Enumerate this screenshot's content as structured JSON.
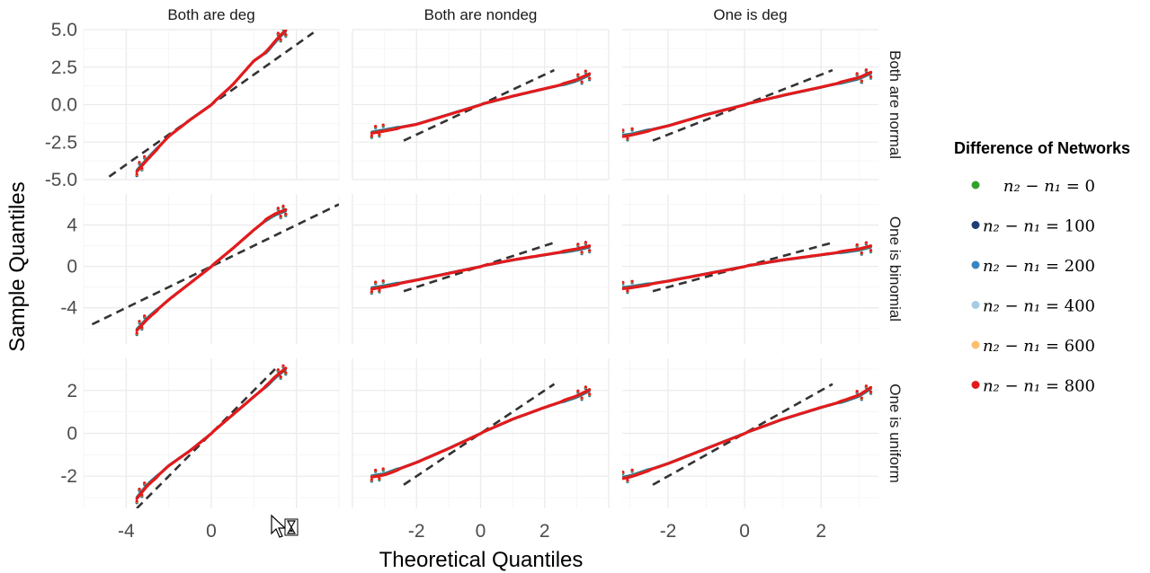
{
  "chart_data": {
    "type": "scatter",
    "subtype": "qq-plot-facet-grid",
    "xlabel": "Theoretical Quantiles",
    "ylabel": "Sample Quantiles",
    "col_strips": [
      "Both are deg",
      "Both are nondeg",
      "One is deg"
    ],
    "row_strips": [
      "Both are normal",
      "One is binomial",
      "One is uniform"
    ],
    "col_xlim": [
      [
        -6.0,
        6.0
      ],
      [
        -4.0,
        4.0
      ],
      [
        -3.2,
        3.5
      ]
    ],
    "col_xticks": [
      [
        -4,
        0
      ],
      [
        -2,
        0,
        2
      ],
      [
        -2,
        0,
        2
      ]
    ],
    "col_xtick_labels": [
      [
        "-4",
        "0"
      ],
      [
        "-2",
        "0",
        "2"
      ],
      [
        "-2",
        "0",
        "2"
      ]
    ],
    "row_ylim": [
      [
        -5.0,
        5.0
      ],
      [
        -7.5,
        7.0
      ],
      [
        -3.5,
        3.5
      ]
    ],
    "row_yticks": [
      [
        -5.0,
        -2.5,
        0.0,
        2.5,
        5.0
      ],
      [
        -4,
        0,
        4
      ],
      [
        -2,
        0,
        2
      ]
    ],
    "row_ytick_labels": [
      [
        "-5.0",
        "-2.5",
        "0.0",
        "2.5",
        "5.0"
      ],
      [
        "-4",
        "0",
        "4"
      ],
      [
        "-2",
        "0",
        "2"
      ]
    ],
    "grid": true,
    "legend": {
      "title": "Difference of Networks",
      "placement": "right",
      "entries": [
        {
          "lhs": "n₂ − n₁ = ",
          "value": "0",
          "color": "#33a02c"
        },
        {
          "lhs": "n₂ − n₁ = ",
          "value": "100",
          "color": "#1f3d73"
        },
        {
          "lhs": "n₂ − n₁ = ",
          "value": "200",
          "color": "#3a84bf"
        },
        {
          "lhs": "n₂ − n₁ = ",
          "value": "400",
          "color": "#a6cce3"
        },
        {
          "lhs": "n₂ − n₁ = ",
          "value": "600",
          "color": "#fdbf6f"
        },
        {
          "lhs": "n₂ − n₁ = ",
          "value": "800",
          "color": "#e31a1c"
        }
      ]
    },
    "reference_line": {
      "style": "dashed",
      "color": "#333333",
      "slope": 1,
      "intercept": 0
    },
    "panels": [
      {
        "row": 0,
        "col": 0,
        "qlim": [
          -3.5,
          3.5
        ],
        "series_points": [
          [
            -3.5,
            -4.4
          ],
          [
            -3.0,
            -3.6
          ],
          [
            -2.0,
            -2.1
          ],
          [
            -1.0,
            -1.0
          ],
          [
            0,
            0
          ],
          [
            1.0,
            1.3
          ],
          [
            2.0,
            2.9
          ],
          [
            2.6,
            3.5
          ],
          [
            3.2,
            4.5
          ],
          [
            3.5,
            4.9
          ]
        ]
      },
      {
        "row": 0,
        "col": 1,
        "qlim": [
          -3.4,
          3.4
        ],
        "series_points": [
          [
            -3.4,
            -1.85
          ],
          [
            -3.0,
            -1.7
          ],
          [
            -2.0,
            -1.3
          ],
          [
            -1.0,
            -0.65
          ],
          [
            0,
            0
          ],
          [
            1.0,
            0.55
          ],
          [
            2.0,
            1.05
          ],
          [
            2.6,
            1.35
          ],
          [
            3.0,
            1.6
          ],
          [
            3.4,
            2.0
          ]
        ]
      },
      {
        "row": 0,
        "col": 2,
        "qlim": [
          -3.3,
          3.3
        ],
        "series_points": [
          [
            -3.3,
            -2.1
          ],
          [
            -3.0,
            -2.0
          ],
          [
            -2.0,
            -1.4
          ],
          [
            -1.0,
            -0.65
          ],
          [
            0,
            0
          ],
          [
            1.0,
            0.6
          ],
          [
            2.0,
            1.15
          ],
          [
            2.6,
            1.5
          ],
          [
            3.0,
            1.75
          ],
          [
            3.3,
            2.1
          ]
        ]
      },
      {
        "row": 1,
        "col": 0,
        "qlim": [
          -3.5,
          3.5
        ],
        "series_points": [
          [
            -3.5,
            -6.1
          ],
          [
            -3.0,
            -5.0
          ],
          [
            -2.0,
            -3.2
          ],
          [
            -1.0,
            -1.6
          ],
          [
            0,
            0
          ],
          [
            1.0,
            1.7
          ],
          [
            2.0,
            3.5
          ],
          [
            2.6,
            4.5
          ],
          [
            3.0,
            5.0
          ],
          [
            3.5,
            5.4
          ]
        ]
      },
      {
        "row": 1,
        "col": 1,
        "qlim": [
          -3.4,
          3.4
        ],
        "series_points": [
          [
            -3.4,
            -2.1
          ],
          [
            -3.0,
            -1.9
          ],
          [
            -2.0,
            -1.3
          ],
          [
            -1.0,
            -0.65
          ],
          [
            0,
            0
          ],
          [
            1.0,
            0.6
          ],
          [
            2.0,
            1.1
          ],
          [
            2.6,
            1.4
          ],
          [
            3.0,
            1.6
          ],
          [
            3.4,
            1.9
          ]
        ]
      },
      {
        "row": 1,
        "col": 2,
        "qlim": [
          -3.3,
          3.3
        ],
        "series_points": [
          [
            -3.3,
            -2.1
          ],
          [
            -3.0,
            -2.0
          ],
          [
            -2.0,
            -1.4
          ],
          [
            -1.0,
            -0.7
          ],
          [
            0,
            0
          ],
          [
            1.0,
            0.6
          ],
          [
            2.0,
            1.1
          ],
          [
            2.6,
            1.4
          ],
          [
            3.0,
            1.6
          ],
          [
            3.3,
            1.9
          ]
        ]
      },
      {
        "row": 2,
        "col": 0,
        "qlim": [
          -3.5,
          3.5
        ],
        "series_points": [
          [
            -3.5,
            -3.0
          ],
          [
            -3.0,
            -2.4
          ],
          [
            -2.0,
            -1.5
          ],
          [
            -1.0,
            -0.8
          ],
          [
            0,
            0
          ],
          [
            1.0,
            0.85
          ],
          [
            2.0,
            1.7
          ],
          [
            2.6,
            2.2
          ],
          [
            3.0,
            2.6
          ],
          [
            3.5,
            3.0
          ]
        ]
      },
      {
        "row": 2,
        "col": 1,
        "qlim": [
          -3.4,
          3.4
        ],
        "series_points": [
          [
            -3.4,
            -2.0
          ],
          [
            -3.0,
            -1.9
          ],
          [
            -2.0,
            -1.35
          ],
          [
            -1.0,
            -0.7
          ],
          [
            0,
            0
          ],
          [
            1.0,
            0.65
          ],
          [
            2.0,
            1.2
          ],
          [
            2.6,
            1.5
          ],
          [
            3.0,
            1.7
          ],
          [
            3.4,
            2.0
          ]
        ]
      },
      {
        "row": 2,
        "col": 2,
        "qlim": [
          -3.3,
          3.3
        ],
        "series_points": [
          [
            -3.3,
            -2.1
          ],
          [
            -3.0,
            -2.0
          ],
          [
            -2.0,
            -1.4
          ],
          [
            -1.0,
            -0.7
          ],
          [
            0,
            0
          ],
          [
            1.0,
            0.65
          ],
          [
            2.0,
            1.2
          ],
          [
            2.6,
            1.5
          ],
          [
            3.0,
            1.75
          ],
          [
            3.3,
            2.1
          ]
        ]
      }
    ]
  }
}
